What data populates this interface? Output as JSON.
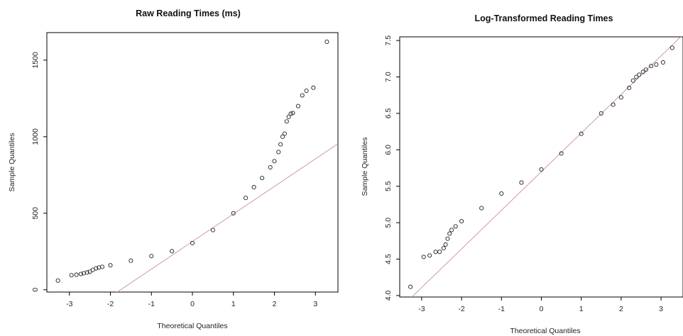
{
  "chart_data": [
    {
      "type": "scatter",
      "title": "Raw Reading Times (ms)",
      "xlabel": "Theoretical Quantiles",
      "ylabel": "Sample Quantiles",
      "xlim": [
        -3.55,
        3.55
      ],
      "ylim": [
        -15,
        1680
      ],
      "x_ticks": [
        -3,
        -2,
        -1,
        0,
        1,
        2,
        3
      ],
      "y_ticks": [
        0,
        500,
        1000,
        1500
      ],
      "reference_line": {
        "slope": 180,
        "intercept": 315
      },
      "series": [
        {
          "marker": "open-circle",
          "points": [
            [
              -3.28,
              60
            ],
            [
              -2.95,
              95
            ],
            [
              -2.83,
              98
            ],
            [
              -2.72,
              103
            ],
            [
              -2.65,
              108
            ],
            [
              -2.57,
              113
            ],
            [
              -2.5,
              118
            ],
            [
              -2.43,
              130
            ],
            [
              -2.35,
              140
            ],
            [
              -2.28,
              145
            ],
            [
              -2.2,
              150
            ],
            [
              -2.0,
              160
            ],
            [
              -1.5,
              190
            ],
            [
              -1.0,
              220
            ],
            [
              -0.5,
              252
            ],
            [
              0.0,
              305
            ],
            [
              0.5,
              390
            ],
            [
              1.0,
              500
            ],
            [
              1.3,
              600
            ],
            [
              1.5,
              670
            ],
            [
              1.7,
              730
            ],
            [
              1.9,
              800
            ],
            [
              2.0,
              840
            ],
            [
              2.1,
              900
            ],
            [
              2.15,
              950
            ],
            [
              2.2,
              1000
            ],
            [
              2.25,
              1020
            ],
            [
              2.3,
              1100
            ],
            [
              2.35,
              1130
            ],
            [
              2.4,
              1150
            ],
            [
              2.45,
              1155
            ],
            [
              2.58,
              1200
            ],
            [
              2.68,
              1270
            ],
            [
              2.78,
              1300
            ],
            [
              2.95,
              1320
            ],
            [
              3.28,
              1620
            ]
          ]
        }
      ],
      "line_color": "#d09a9a",
      "grid": false
    },
    {
      "type": "scatter",
      "title": "Log-Transformed Reading Times",
      "xlabel": "Theoretical Quantiles",
      "ylabel": "Sample Quantiles",
      "xlim": [
        -3.55,
        3.55
      ],
      "ylim": [
        3.98,
        7.55
      ],
      "x_ticks": [
        -3,
        -2,
        -1,
        0,
        1,
        2,
        3
      ],
      "y_ticks": [
        4.0,
        4.5,
        5.0,
        5.5,
        6.0,
        6.5,
        7.0,
        7.5
      ],
      "reference_line": {
        "slope": 0.53,
        "intercept": 5.7
      },
      "series": [
        {
          "marker": "open-circle",
          "points": [
            [
              -3.28,
              4.12
            ],
            [
              -2.95,
              4.53
            ],
            [
              -2.8,
              4.55
            ],
            [
              -2.65,
              4.6
            ],
            [
              -2.55,
              4.6
            ],
            [
              -2.45,
              4.65
            ],
            [
              -2.4,
              4.7
            ],
            [
              -2.35,
              4.78
            ],
            [
              -2.3,
              4.85
            ],
            [
              -2.25,
              4.9
            ],
            [
              -2.15,
              4.95
            ],
            [
              -2.0,
              5.02
            ],
            [
              -1.5,
              5.2
            ],
            [
              -1.0,
              5.4
            ],
            [
              -0.5,
              5.55
            ],
            [
              0.0,
              5.73
            ],
            [
              0.5,
              5.95
            ],
            [
              1.0,
              6.22
            ],
            [
              1.5,
              6.5
            ],
            [
              1.8,
              6.62
            ],
            [
              2.0,
              6.72
            ],
            [
              2.2,
              6.85
            ],
            [
              2.3,
              6.95
            ],
            [
              2.38,
              7.0
            ],
            [
              2.45,
              7.03
            ],
            [
              2.55,
              7.07
            ],
            [
              2.62,
              7.1
            ],
            [
              2.75,
              7.15
            ],
            [
              2.88,
              7.17
            ],
            [
              3.05,
              7.2
            ],
            [
              3.28,
              7.4
            ]
          ]
        }
      ],
      "line_color": "#d09a9a",
      "grid": false
    }
  ]
}
